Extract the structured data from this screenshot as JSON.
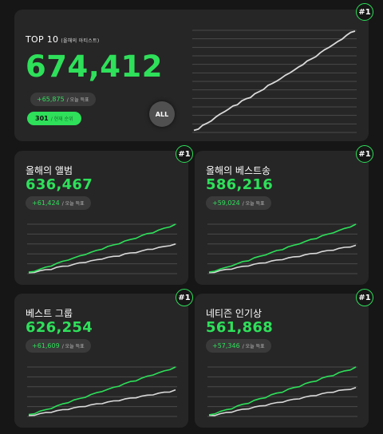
{
  "hero": {
    "title": "TOP 10",
    "subtitle": "(올해의 아티스트)",
    "total": "674,412",
    "daily_delta": "+65,875",
    "daily_label": "/ 오늘 득표",
    "count": "301",
    "count_label": "/ 현재 순위",
    "all_button": "ALL",
    "rank": "#1",
    "chart_values": [
      2,
      4,
      7,
      9,
      12,
      15,
      18,
      21,
      23,
      26,
      28,
      31,
      33,
      35,
      38,
      40,
      43,
      46,
      48,
      51,
      53,
      56,
      59,
      61,
      64,
      67,
      70,
      72,
      75,
      78,
      81,
      84,
      86,
      89,
      92,
      95,
      98,
      100
    ]
  },
  "cards": [
    {
      "title": "올해의 앨범",
      "total": "636,467",
      "delta": "+61,424",
      "delta_label": "/ 오늘 득표",
      "rank": "#1",
      "series_green": [
        3,
        6,
        9,
        13,
        17,
        21,
        25,
        29,
        32,
        36,
        40,
        43,
        47,
        51,
        55,
        58,
        62,
        66,
        69,
        73,
        77,
        81,
        84,
        88,
        92,
        96,
        100
      ],
      "series_gray": [
        2,
        4,
        6,
        8,
        10,
        13,
        15,
        17,
        19,
        22,
        24,
        26,
        28,
        31,
        33,
        35,
        37,
        40,
        42,
        44,
        46,
        49,
        51,
        53,
        55,
        58,
        60
      ]
    },
    {
      "title": "올해의 베스트송",
      "total": "586,216",
      "delta": "+59,024",
      "delta_label": "/ 오늘 득표",
      "rank": "#1",
      "series_green": [
        3,
        6,
        9,
        12,
        16,
        19,
        23,
        26,
        30,
        33,
        37,
        40,
        44,
        47,
        51,
        54,
        58,
        61,
        65,
        68,
        72,
        75,
        79,
        82,
        86,
        90,
        94
      ],
      "series_gray": [
        2,
        4,
        6,
        8,
        10,
        12,
        14,
        16,
        18,
        20,
        22,
        24,
        26,
        28,
        30,
        32,
        34,
        36,
        38,
        40,
        42,
        44,
        46,
        48,
        50,
        52,
        54
      ]
    },
    {
      "title": "베스트 그룹",
      "total": "626,254",
      "delta": "+61,609",
      "delta_label": "/ 오늘 득표",
      "rank": "#1",
      "series_green": [
        4,
        7,
        11,
        14,
        18,
        22,
        26,
        30,
        34,
        37,
        41,
        45,
        49,
        53,
        56,
        60,
        64,
        68,
        72,
        75,
        79,
        83,
        87,
        90,
        94,
        98,
        102
      ],
      "series_gray": [
        2,
        4,
        6,
        8,
        10,
        12,
        14,
        16,
        18,
        20,
        22,
        24,
        26,
        28,
        30,
        32,
        34,
        36,
        38,
        40,
        42,
        44,
        46,
        48,
        50,
        52,
        55
      ]
    },
    {
      "title": "네티즌 인기상",
      "total": "561,868",
      "delta": "+57,346",
      "delta_label": "/ 오늘 득표",
      "rank": "#1",
      "series_green": [
        3,
        6,
        9,
        12,
        15,
        19,
        22,
        25,
        29,
        32,
        35,
        39,
        42,
        45,
        49,
        52,
        55,
        59,
        62,
        65,
        69,
        72,
        75,
        79,
        82,
        85,
        89
      ],
      "series_gray": [
        2,
        3,
        5,
        7,
        9,
        11,
        13,
        15,
        17,
        19,
        21,
        23,
        25,
        27,
        29,
        31,
        33,
        35,
        37,
        39,
        41,
        43,
        45,
        47,
        48,
        50,
        52
      ]
    }
  ],
  "colors": {
    "accent": "#2ee05a",
    "card": "#262626",
    "background": "#161616",
    "line_gray": "#d9d9d9"
  }
}
